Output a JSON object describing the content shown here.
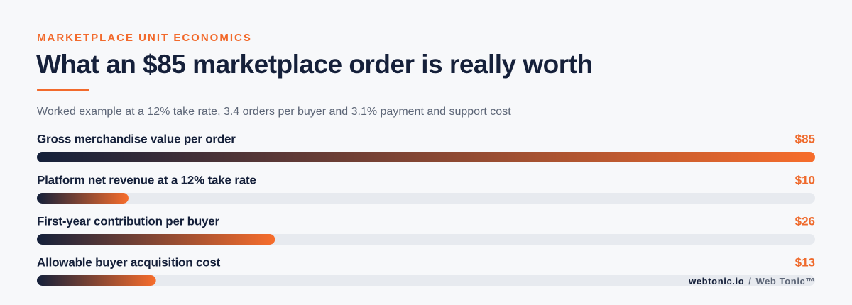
{
  "chart_data": {
    "type": "bar",
    "kicker": "MARKETPLACE UNIT ECONOMICS",
    "title": "What an $85 marketplace order is really worth",
    "subtitle": "Worked example at a 12% take rate, 3.4 orders per buyer and 3.1% payment and support cost",
    "categories": [
      "Gross merchandise value per order",
      "Platform net revenue at a 12% take rate",
      "First-year contribution per buyer",
      "Allowable buyer acquisition cost"
    ],
    "values": [
      85,
      10,
      26,
      13
    ],
    "value_labels": [
      "$85",
      "$10",
      "$26",
      "$13"
    ],
    "xlim": [
      0,
      85
    ],
    "color": [
      "#14203a",
      "#f76d2c"
    ],
    "track_color": "#e7eaef",
    "footer": {
      "site": "webtonic.io",
      "separator": "/",
      "brand": "Web Tonic™"
    }
  }
}
